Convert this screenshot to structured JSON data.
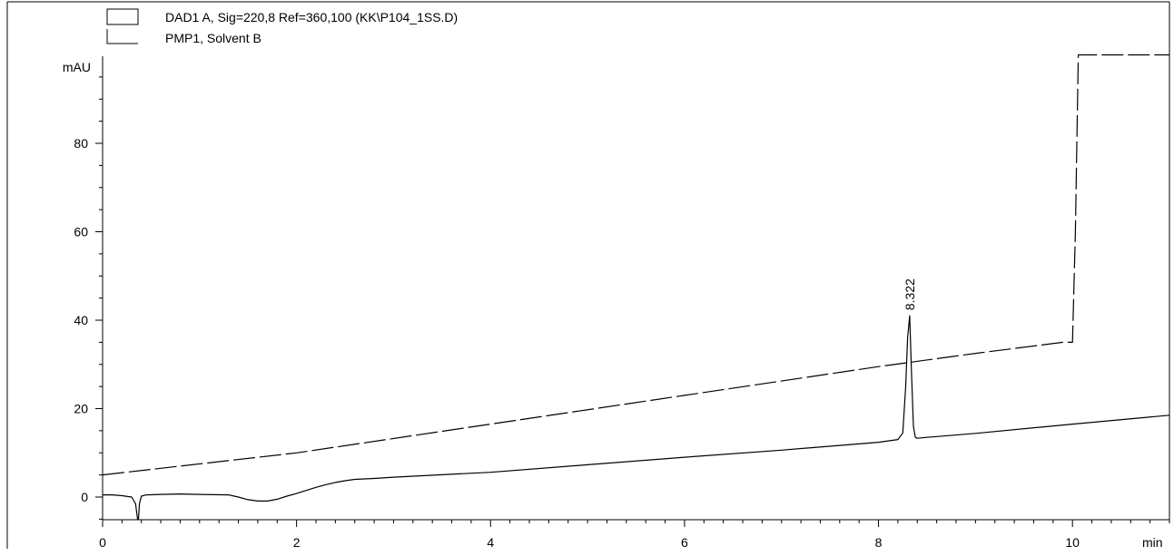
{
  "chart_data": {
    "type": "line",
    "ylabel": "mAU",
    "xlabel": "min",
    "xlim": [
      0,
      11
    ],
    "ylim": [
      -5,
      100
    ],
    "x_ticks": [
      0,
      2,
      4,
      6,
      8,
      10
    ],
    "y_ticks": [
      0,
      20,
      40,
      60,
      80
    ],
    "legend_position": "top-left",
    "series": [
      {
        "name": "DAD1 A, Sig=220,8 Ref=360,100 (KK\\P104_1SS.D)",
        "style": "solid",
        "x": [
          0,
          0.1,
          0.2,
          0.3,
          0.34,
          0.36,
          0.37,
          0.38,
          0.4,
          0.45,
          0.6,
          0.8,
          1.0,
          1.3,
          1.4,
          1.5,
          1.6,
          1.7,
          1.8,
          1.9,
          2.0,
          2.1,
          2.2,
          2.3,
          2.4,
          2.5,
          2.6,
          2.8,
          3.0,
          4.0,
          5.0,
          6.0,
          7.0,
          8.0,
          8.2,
          8.25,
          8.28,
          8.3,
          8.322,
          8.34,
          8.36,
          8.38,
          8.4,
          8.45,
          8.5,
          9.0,
          10.0,
          11.0
        ],
        "y": [
          0.5,
          0.5,
          0.3,
          0.0,
          -1.5,
          -5.0,
          -5.0,
          -1.5,
          0.2,
          0.5,
          0.6,
          0.7,
          0.6,
          0.5,
          0.0,
          -0.6,
          -0.9,
          -0.9,
          -0.5,
          0.2,
          0.8,
          1.5,
          2.2,
          2.8,
          3.3,
          3.7,
          4.0,
          4.2,
          4.5,
          5.6,
          7.3,
          9.0,
          10.6,
          12.4,
          13.0,
          14.5,
          25.0,
          36.0,
          41.0,
          28.0,
          16.0,
          13.5,
          13.3,
          13.4,
          13.5,
          14.4,
          16.5,
          18.5
        ]
      },
      {
        "name": "PMP1, Solvent B",
        "style": "dashed",
        "x": [
          0,
          2,
          4,
          6,
          8,
          9,
          9.9,
          10.0,
          10.03,
          10.06,
          11.0
        ],
        "y": [
          5,
          10,
          16.5,
          23,
          29.5,
          32.5,
          35,
          35,
          60,
          100,
          100
        ]
      }
    ],
    "annotations": [
      {
        "text": "8.322",
        "x": 8.322,
        "y": 41.0
      }
    ]
  }
}
